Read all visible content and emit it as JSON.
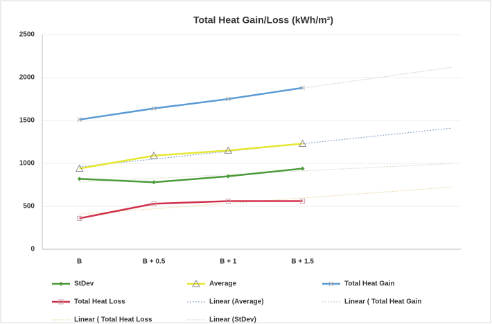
{
  "chart_data": {
    "type": "line",
    "title": "Total Heat Gain/Loss (kWh/m²)",
    "categories": [
      "B",
      "B + 0.5",
      "B + 1",
      "B + 1.5",
      null,
      null
    ],
    "ylim": [
      0,
      2500
    ],
    "yticks": [
      0,
      500,
      1000,
      1500,
      2000,
      2500
    ],
    "grid": true,
    "legend": "bottom",
    "series": [
      {
        "name": "StDev",
        "color": "#4a9a3a",
        "marker": "diamond",
        "values": [
          820,
          780,
          850,
          940,
          null,
          null
        ]
      },
      {
        "name": "Average",
        "color": "#e6e632",
        "marker": "triangle",
        "values": [
          940,
          1090,
          1150,
          1230,
          null,
          null
        ]
      },
      {
        "name": "Total Heat Gain",
        "color": "#5b9bd5",
        "marker": "cross",
        "values": [
          1510,
          1640,
          1750,
          1880,
          null,
          null
        ]
      },
      {
        "name": "Total Heat Loss",
        "color": "#d0304a",
        "marker": "square",
        "values": [
          360,
          530,
          560,
          560,
          null,
          null
        ]
      },
      {
        "name": "Linear (Average)",
        "color": "#8fa8c8",
        "style": "dotted",
        "values": [
          960,
          1050,
          1140,
          1230,
          1320,
          1410
        ]
      },
      {
        "name": "Linear ( Total Heat Gain",
        "color": "#c8d8c0",
        "style": "dotted",
        "values": [
          1510,
          1632,
          1754,
          1876,
          1998,
          2120
        ]
      },
      {
        "name": "Linear ( Total Heat Loss",
        "color": "#e8d8a0",
        "style": "dotted",
        "values": [
          408,
          471,
          534,
          597,
          660,
          723
        ]
      },
      {
        "name": "Linear (StDev)",
        "color": "#d8d8c8",
        "style": "dotted",
        "values": [
          783,
          826,
          869,
          912,
          955,
          998
        ]
      }
    ]
  }
}
